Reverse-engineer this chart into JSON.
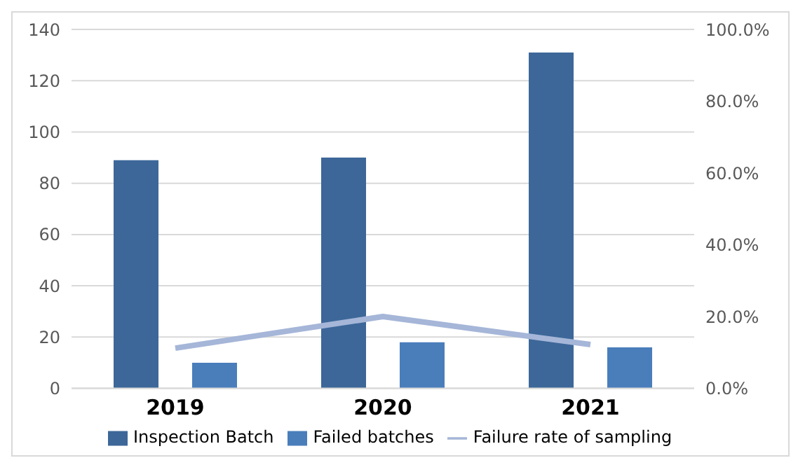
{
  "chart_data": {
    "type": "bar",
    "categories": [
      "2019",
      "2020",
      "2021"
    ],
    "series": [
      {
        "name": "Inspection Batch",
        "color": "#3d6799",
        "values": [
          89,
          90,
          131
        ]
      },
      {
        "name": "Failed batches",
        "color": "#4a7ebb",
        "values": [
          10,
          18,
          16
        ]
      },
      {
        "name": "Failure rate of sampling",
        "type": "line",
        "axis": "y2",
        "color": "#a5b6d8",
        "values": [
          11.2,
          20.0,
          12.2
        ]
      }
    ],
    "ylim": [
      0,
      140
    ],
    "yticks": [
      0,
      20,
      40,
      60,
      80,
      100,
      120,
      140
    ],
    "y2lim": [
      0,
      100
    ],
    "y2ticks": [
      {
        "value": 0,
        "label": "0.0%"
      },
      {
        "value": 20,
        "label": "20.0%"
      },
      {
        "value": 40,
        "label": "40.0%"
      },
      {
        "value": 60,
        "label": "60.0%"
      },
      {
        "value": 80,
        "label": "80.0%"
      },
      {
        "value": 100,
        "label": "100.0%"
      }
    ],
    "grid": "y",
    "legend": "bottom",
    "marker": "none"
  }
}
